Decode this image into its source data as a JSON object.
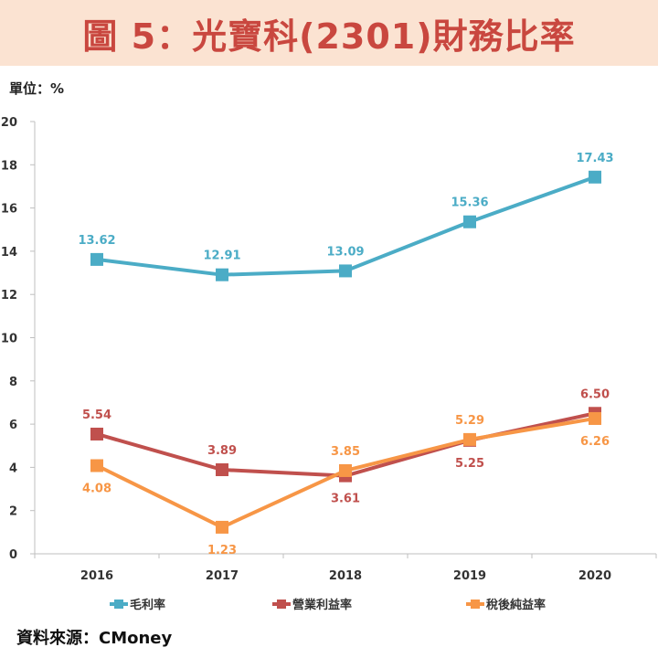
{
  "title": "圖 5：光寶科(2301)財務比率",
  "unit_label": "單位：%",
  "source_label": "資料來源：CMoney",
  "colors": {
    "title_bg": "#fbe3d2",
    "title_text": "#c9473f"
  },
  "chart_data": {
    "type": "line",
    "title": "",
    "xlabel": "",
    "ylabel": "",
    "categories": [
      "2016",
      "2017",
      "2018",
      "2019",
      "2020"
    ],
    "ylim": [
      0,
      20
    ],
    "yticks": [
      0,
      2,
      4,
      6,
      8,
      10,
      12,
      14,
      16,
      18,
      20
    ],
    "grid": false,
    "legend_position": "bottom",
    "series": [
      {
        "name": "毛利率",
        "color": "#4bacc6",
        "values": [
          13.62,
          12.91,
          13.09,
          15.36,
          17.43
        ],
        "labels": [
          "13.62",
          "12.91",
          "13.09",
          "15.36",
          "17.43"
        ],
        "label_pos": [
          "above",
          "above",
          "above",
          "above",
          "above"
        ]
      },
      {
        "name": "營業利益率",
        "color": "#c0504d",
        "values": [
          5.54,
          3.89,
          3.61,
          5.25,
          6.5
        ],
        "labels": [
          "5.54",
          "3.89",
          "3.61",
          "5.25",
          "6.50"
        ],
        "label_pos": [
          "above",
          "above",
          "below",
          "below",
          "above"
        ]
      },
      {
        "name": "稅後純益率",
        "color": "#f79646",
        "values": [
          4.08,
          1.23,
          3.85,
          5.29,
          6.26
        ],
        "labels": [
          "4.08",
          "1.23",
          "3.85",
          "5.29",
          "6.26"
        ],
        "label_pos": [
          "below",
          "below",
          "above",
          "above",
          "below"
        ]
      }
    ]
  }
}
